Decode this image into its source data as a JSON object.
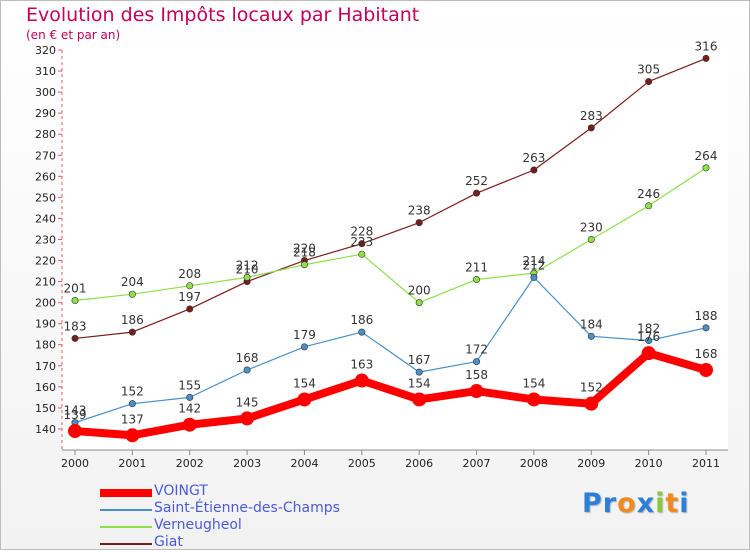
{
  "title": "Evolution des Impôts locaux par Habitant",
  "subtitle": "(en € et par an)",
  "logo": {
    "letters": [
      "P",
      "r",
      "o",
      "x",
      "i",
      "t",
      "i"
    ],
    "colors": [
      "#2b7fd6",
      "#2b7fd6",
      "#f08a1c",
      "#2b7fd6",
      "#8cc63f",
      "#f08a1c",
      "#2b7fd6"
    ]
  },
  "chart_data": {
    "type": "line",
    "x": [
      "2000",
      "2001",
      "2002",
      "2003",
      "2004",
      "2005",
      "2006",
      "2007",
      "2008",
      "2009",
      "2010",
      "2011"
    ],
    "ylim": [
      130,
      320
    ],
    "yticks": [
      "140",
      "150",
      "160",
      "170",
      "180",
      "190",
      "200",
      "210",
      "220",
      "230",
      "240",
      "250",
      "260",
      "270",
      "280",
      "290",
      "300",
      "310",
      "320"
    ],
    "grid": false,
    "legend_position": "bottom-left",
    "series": [
      {
        "name": "VOINGT",
        "values": [
          139,
          137,
          142,
          145,
          154,
          163,
          154,
          158,
          154,
          152,
          176,
          168
        ],
        "color": "#ff0000",
        "labels": [
          "139",
          "137",
          "142",
          "145",
          "154",
          "163",
          "154",
          "158",
          "154",
          "152",
          "176",
          "168"
        ]
      },
      {
        "name": "Saint-Étienne-des-Champs",
        "values": [
          143,
          152,
          155,
          168,
          179,
          186,
          167,
          172,
          212,
          184,
          182,
          188
        ],
        "color": "#4a8fc8",
        "labels": [
          "143",
          "152",
          "155",
          "168",
          "179",
          "186",
          "167",
          "172",
          "212",
          "184",
          "182",
          "188"
        ]
      },
      {
        "name": "Verneugheol",
        "values": [
          201,
          204,
          208,
          212,
          218,
          223,
          200,
          211,
          214,
          230,
          246,
          264
        ],
        "color": "#8ee04a",
        "labels": [
          "201",
          "204",
          "208",
          "212",
          "218",
          "223",
          "200",
          "211",
          "214",
          "230",
          "246",
          "264"
        ]
      },
      {
        "name": "Giat",
        "values": [
          183,
          186,
          197,
          210,
          220,
          228,
          238,
          252,
          263,
          283,
          305,
          316
        ],
        "color": "#7a1c1c",
        "labels": [
          "183",
          "186",
          "197",
          "210",
          "220",
          "228",
          "238",
          "252",
          "263",
          "283",
          "305",
          "316"
        ]
      }
    ]
  }
}
